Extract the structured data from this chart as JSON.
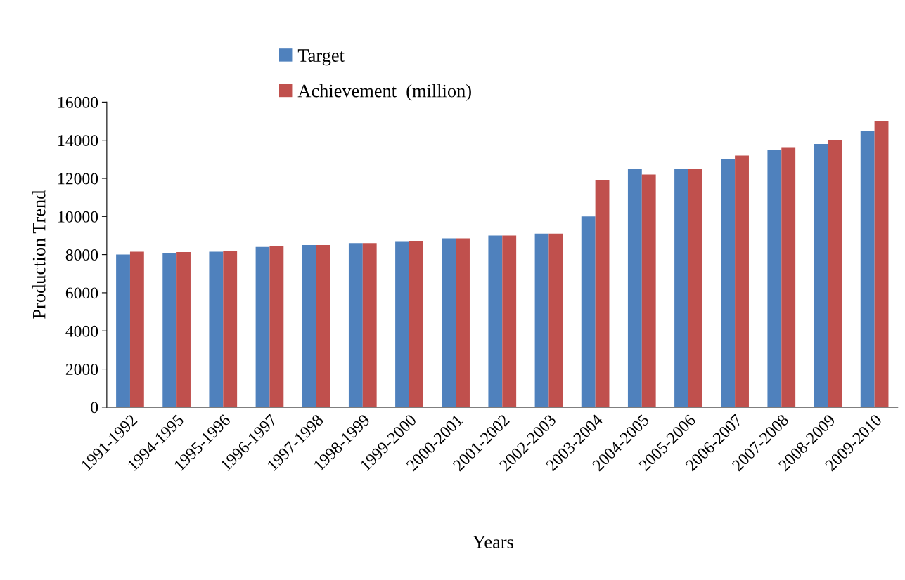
{
  "chart_data": {
    "type": "bar",
    "xlabel": "Years",
    "ylabel": "Production Trend",
    "categories": [
      "1991-1992",
      "1994-1995",
      "1995-1996",
      "1996-1997",
      "1997-1998",
      "1998-1999",
      "1999-2000",
      "2000-2001",
      "2001-2002",
      "2002-2003",
      "2003-2004",
      "2004-2005",
      "2005-2006",
      "2006-2007",
      "2007-2008",
      "2008-2009",
      "2009-2010"
    ],
    "series": [
      {
        "name": "Target",
        "color": "#4f81bd",
        "values": [
          8000,
          8100,
          8150,
          8400,
          8500,
          8600,
          8700,
          8850,
          9000,
          9100,
          10000,
          12500,
          12500,
          13000,
          13500,
          13800,
          14500
        ]
      },
      {
        "name": "Achievement  (million)",
        "color": "#c0504d",
        "values": [
          8150,
          8130,
          8200,
          8450,
          8500,
          8600,
          8720,
          8850,
          9000,
          9100,
          11900,
          12200,
          12500,
          13200,
          13600,
          14000,
          15000
        ]
      }
    ],
    "ylim": [
      0,
      16000
    ],
    "yticks": [
      0,
      2000,
      4000,
      6000,
      8000,
      10000,
      12000,
      14000,
      16000
    ],
    "grid": false,
    "legend": "top"
  }
}
